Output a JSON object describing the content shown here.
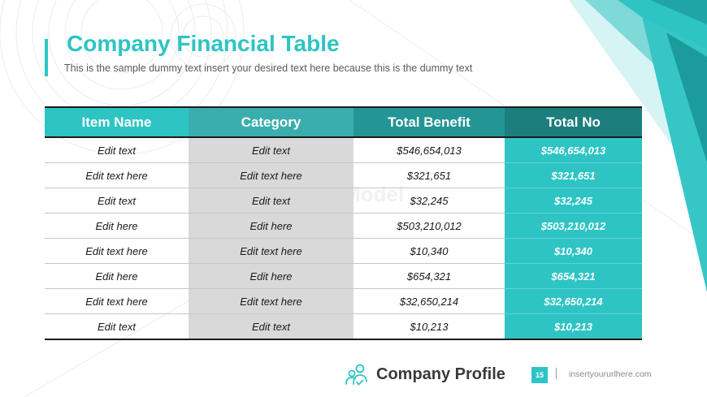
{
  "slide": {
    "title": "Company Financial Table",
    "subtitle": "This is the sample dummy text insert your desired text here because this is the dummy text"
  },
  "table": {
    "headers": [
      "Item Name",
      "Category",
      "Total Benefit",
      "Total No"
    ],
    "rows": [
      [
        "Edit text",
        "Edit text",
        "$546,654,013",
        "$546,654,013"
      ],
      [
        "Edit text here",
        "Edit text here",
        "$321,651",
        "$321,651"
      ],
      [
        "Edit text",
        "Edit text",
        "$32,245",
        "$32,245"
      ],
      [
        "Edit here",
        "Edit here",
        "$503,210,012",
        "$503,210,012"
      ],
      [
        "Edit text here",
        "Edit text here",
        "$10,340",
        "$10,340"
      ],
      [
        "Edit here",
        "Edit here",
        "$654,321",
        "$654,321"
      ],
      [
        "Edit text here",
        "Edit text here",
        "$32,650,214",
        "$32,650,214"
      ],
      [
        "Edit text",
        "Edit text",
        "$10,213",
        "$10,213"
      ]
    ]
  },
  "watermark": "SlideModel",
  "footer": {
    "brand": "Company Profile",
    "page_number": "15",
    "url": "insertyoururlhere.com",
    "icon": "people-icon"
  },
  "colors": {
    "accent": "#2ec4c4",
    "header_dark": "#1d7e7e",
    "category_bg": "#d9d9d9"
  }
}
